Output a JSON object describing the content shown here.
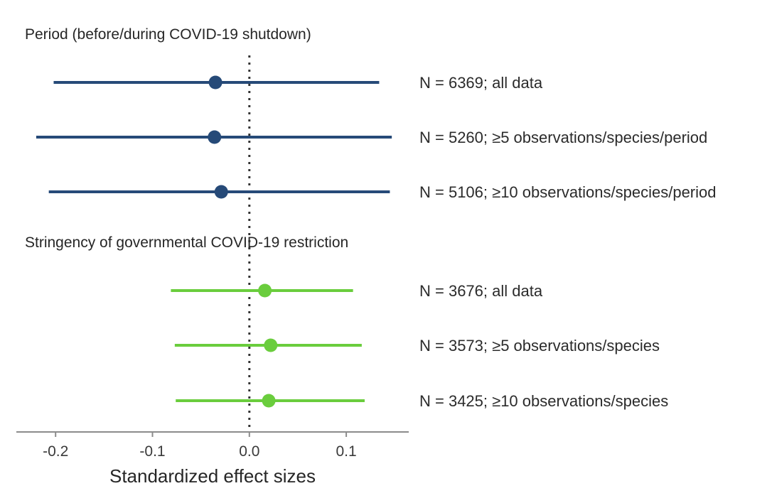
{
  "chart_data": {
    "type": "forest",
    "xlabel": "Standardized effect sizes",
    "xlim": [
      -0.2405,
      0.1645
    ],
    "xticks": [
      -0.2,
      -0.1,
      0.0,
      0.1
    ],
    "xtick_labels": [
      "-0.2",
      "-0.1",
      "0.0",
      "0.1"
    ],
    "reference_line": 0.0,
    "panels": [
      {
        "title": "Period (before/during COVID-19 shutdown)",
        "color": "#264a78",
        "rows": [
          {
            "label": "N = 6369; all data",
            "estimate": -0.035,
            "lower": -0.202,
            "upper": 0.134
          },
          {
            "label": "N = 5260; ≥5 observations/species/period",
            "estimate": -0.036,
            "lower": -0.22,
            "upper": 0.147
          },
          {
            "label": "N = 5106; ≥10 observations/species/period",
            "estimate": -0.029,
            "lower": -0.207,
            "upper": 0.145
          }
        ]
      },
      {
        "title": "Stringency of governmental COVID-19 restriction",
        "color": "#6acd3d",
        "rows": [
          {
            "label": "N = 3676; all data",
            "estimate": 0.016,
            "lower": -0.081,
            "upper": 0.107
          },
          {
            "label": "N = 3573; ≥5 observations/species",
            "estimate": 0.022,
            "lower": -0.077,
            "upper": 0.116
          },
          {
            "label": "N = 3425; ≥10 observations/species",
            "estimate": 0.02,
            "lower": -0.076,
            "upper": 0.119
          }
        ]
      }
    ]
  }
}
